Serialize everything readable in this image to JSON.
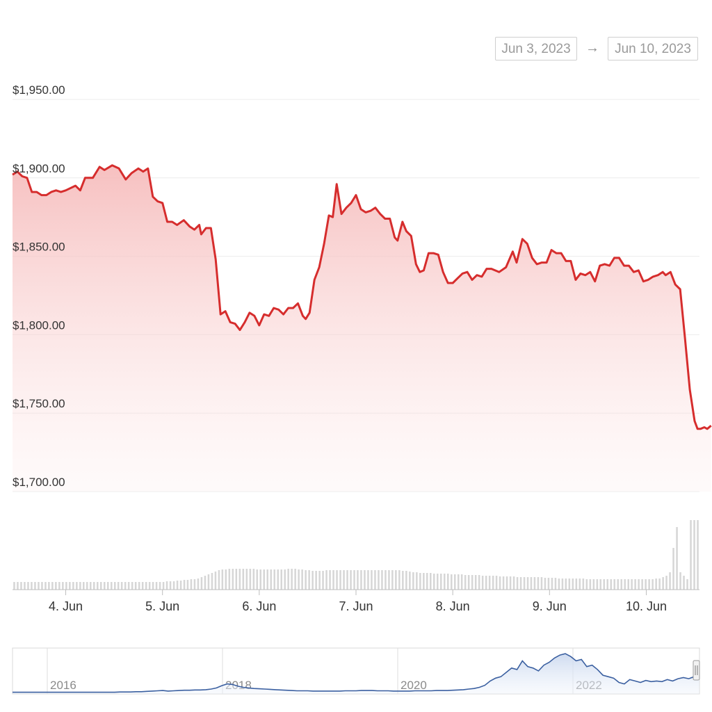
{
  "date_range": {
    "start": "Jun 3, 2023",
    "arrow": "→",
    "end": "Jun 10, 2023"
  },
  "colors": {
    "line": "#d62d2d",
    "area_top": "#f5b5b5",
    "volume": "#d6d6d6",
    "navigator": "#3a5fa0",
    "grid": "#ececec"
  },
  "chart_data": {
    "type": "line",
    "yticks": [
      "$1,950.00",
      "$1,900.00",
      "$1,850.00",
      "$1,800.00",
      "$1,750.00",
      "$1,700.00"
    ],
    "ylim": [
      1700,
      1950
    ],
    "xticks": [
      "4. Jun",
      "5. Jun",
      "6. Jun",
      "7. Jun",
      "8. Jun",
      "9. Jun",
      "10. Jun"
    ],
    "xlim": [
      3.45,
      10.55
    ],
    "grid": true,
    "series": [
      {
        "values_xy": [
          [
            3.45,
            1902
          ],
          [
            3.5,
            1904
          ],
          [
            3.55,
            1901
          ],
          [
            3.6,
            1900
          ],
          [
            3.65,
            1891
          ],
          [
            3.7,
            1891
          ],
          [
            3.75,
            1889
          ],
          [
            3.8,
            1889
          ],
          [
            3.85,
            1891
          ],
          [
            3.9,
            1892
          ],
          [
            3.95,
            1891
          ],
          [
            4.0,
            1892
          ],
          [
            4.1,
            1895
          ],
          [
            4.15,
            1892
          ],
          [
            4.2,
            1900
          ],
          [
            4.28,
            1900
          ],
          [
            4.35,
            1907
          ],
          [
            4.4,
            1905
          ],
          [
            4.48,
            1908
          ],
          [
            4.55,
            1906
          ],
          [
            4.62,
            1899
          ],
          [
            4.68,
            1903
          ],
          [
            4.75,
            1906
          ],
          [
            4.8,
            1904
          ],
          [
            4.85,
            1906
          ],
          [
            4.9,
            1888
          ],
          [
            4.95,
            1885
          ],
          [
            5.0,
            1884
          ],
          [
            5.05,
            1872
          ],
          [
            5.1,
            1872
          ],
          [
            5.15,
            1870
          ],
          [
            5.22,
            1873
          ],
          [
            5.28,
            1869
          ],
          [
            5.33,
            1867
          ],
          [
            5.38,
            1870
          ],
          [
            5.4,
            1864
          ],
          [
            5.45,
            1868
          ],
          [
            5.5,
            1868
          ],
          [
            5.55,
            1848
          ],
          [
            5.6,
            1813
          ],
          [
            5.65,
            1815
          ],
          [
            5.7,
            1808
          ],
          [
            5.75,
            1807
          ],
          [
            5.8,
            1803
          ],
          [
            5.85,
            1808
          ],
          [
            5.9,
            1814
          ],
          [
            5.95,
            1812
          ],
          [
            6.0,
            1806
          ],
          [
            6.05,
            1813
          ],
          [
            6.1,
            1812
          ],
          [
            6.15,
            1817
          ],
          [
            6.2,
            1816
          ],
          [
            6.25,
            1813
          ],
          [
            6.3,
            1817
          ],
          [
            6.35,
            1817
          ],
          [
            6.4,
            1820
          ],
          [
            6.45,
            1812
          ],
          [
            6.48,
            1810
          ],
          [
            6.52,
            1814
          ],
          [
            6.57,
            1835
          ],
          [
            6.62,
            1843
          ],
          [
            6.67,
            1858
          ],
          [
            6.72,
            1876
          ],
          [
            6.76,
            1875
          ],
          [
            6.8,
            1896
          ],
          [
            6.85,
            1877
          ],
          [
            6.9,
            1881
          ],
          [
            6.95,
            1884
          ],
          [
            7.0,
            1889
          ],
          [
            7.05,
            1880
          ],
          [
            7.1,
            1878
          ],
          [
            7.15,
            1879
          ],
          [
            7.2,
            1881
          ],
          [
            7.25,
            1877
          ],
          [
            7.3,
            1874
          ],
          [
            7.35,
            1874
          ],
          [
            7.4,
            1862
          ],
          [
            7.43,
            1860
          ],
          [
            7.48,
            1872
          ],
          [
            7.52,
            1866
          ],
          [
            7.57,
            1863
          ],
          [
            7.62,
            1845
          ],
          [
            7.66,
            1840
          ],
          [
            7.7,
            1841
          ],
          [
            7.75,
            1852
          ],
          [
            7.8,
            1852
          ],
          [
            7.85,
            1851
          ],
          [
            7.9,
            1840
          ],
          [
            7.95,
            1833
          ],
          [
            8.0,
            1833
          ],
          [
            8.05,
            1836
          ],
          [
            8.1,
            1839
          ],
          [
            8.15,
            1840
          ],
          [
            8.2,
            1835
          ],
          [
            8.25,
            1838
          ],
          [
            8.3,
            1837
          ],
          [
            8.35,
            1842
          ],
          [
            8.4,
            1842
          ],
          [
            8.48,
            1840
          ],
          [
            8.55,
            1843
          ],
          [
            8.62,
            1853
          ],
          [
            8.66,
            1846
          ],
          [
            8.72,
            1861
          ],
          [
            8.77,
            1858
          ],
          [
            8.82,
            1849
          ],
          [
            8.87,
            1845
          ],
          [
            8.92,
            1846
          ],
          [
            8.97,
            1846
          ],
          [
            9.02,
            1854
          ],
          [
            9.07,
            1852
          ],
          [
            9.12,
            1852
          ],
          [
            9.17,
            1847
          ],
          [
            9.22,
            1847
          ],
          [
            9.27,
            1835
          ],
          [
            9.32,
            1839
          ],
          [
            9.37,
            1838
          ],
          [
            9.42,
            1840
          ],
          [
            9.47,
            1834
          ],
          [
            9.52,
            1844
          ],
          [
            9.57,
            1845
          ],
          [
            9.62,
            1844
          ],
          [
            9.67,
            1849
          ],
          [
            9.72,
            1849
          ],
          [
            9.77,
            1844
          ],
          [
            9.82,
            1844
          ],
          [
            9.87,
            1840
          ],
          [
            9.92,
            1841
          ],
          [
            9.97,
            1834
          ],
          [
            10.02,
            1835
          ],
          [
            10.07,
            1837
          ],
          [
            10.12,
            1838
          ],
          [
            10.17,
            1840
          ],
          [
            10.2,
            1838
          ],
          [
            10.25,
            1840
          ],
          [
            10.3,
            1832
          ],
          [
            10.35,
            1829
          ],
          [
            10.4,
            1798
          ],
          [
            10.45,
            1765
          ],
          [
            10.5,
            1745
          ],
          [
            10.53,
            1740
          ],
          [
            10.56,
            1740
          ],
          [
            10.6,
            1741
          ],
          [
            10.63,
            1740
          ],
          [
            10.67,
            1742
          ]
        ]
      }
    ],
    "volume": {
      "values": [
        11,
        11,
        11,
        11,
        11,
        11,
        11,
        11,
        11,
        11,
        11,
        11,
        11,
        11,
        11,
        11,
        11,
        11,
        11,
        11,
        11,
        11,
        11,
        11,
        11,
        11,
        11,
        11,
        11,
        11,
        11,
        11,
        11,
        11,
        11,
        11,
        11,
        11,
        11,
        11,
        11,
        11,
        11,
        11,
        12,
        12,
        12,
        13,
        13,
        14,
        14,
        15,
        15,
        16,
        18,
        20,
        22,
        24,
        26,
        28,
        29,
        29,
        30,
        30,
        30,
        30,
        30,
        30,
        30,
        30,
        29,
        29,
        29,
        29,
        29,
        29,
        29,
        29,
        29,
        30,
        30,
        30,
        29,
        29,
        28,
        28,
        27,
        27,
        27,
        27,
        28,
        28,
        28,
        28,
        28,
        28,
        28,
        28,
        28,
        28,
        28,
        28,
        28,
        28,
        28,
        28,
        28,
        28,
        28,
        28,
        28,
        28,
        27,
        27,
        26,
        25,
        25,
        24,
        24,
        24,
        24,
        23,
        23,
        23,
        23,
        23,
        22,
        22,
        22,
        22,
        21,
        21,
        21,
        21,
        21,
        20,
        20,
        20,
        20,
        20,
        19,
        19,
        19,
        19,
        19,
        18,
        18,
        18,
        18,
        18,
        18,
        18,
        18,
        17,
        17,
        17,
        17,
        16,
        16,
        16,
        16,
        16,
        16,
        16,
        16,
        15,
        15,
        15,
        15,
        15,
        15,
        15,
        15,
        15,
        15,
        15,
        15,
        15,
        15,
        15,
        15,
        15,
        15,
        15,
        15,
        16,
        16,
        18,
        20,
        25,
        60,
        90,
        25,
        20,
        15,
        100,
        100,
        100
      ]
    }
  },
  "navigator": {
    "labels": [
      "2016",
      "2018",
      "2020",
      "2022"
    ],
    "values": [
      1,
      1,
      1,
      1,
      1,
      1,
      1,
      1,
      1,
      1,
      1,
      1,
      1,
      1,
      1,
      1,
      1,
      1,
      1,
      1,
      2,
      2,
      2,
      3,
      3,
      4,
      5,
      6,
      7,
      5,
      6,
      7,
      8,
      8,
      9,
      9,
      10,
      12,
      16,
      24,
      30,
      28,
      22,
      18,
      16,
      14,
      13,
      12,
      11,
      10,
      9,
      8,
      7,
      6,
      6,
      6,
      5,
      5,
      5,
      5,
      5,
      5,
      6,
      6,
      6,
      7,
      7,
      7,
      6,
      6,
      6,
      5,
      5,
      5,
      5,
      6,
      6,
      6,
      6,
      7,
      7,
      7,
      8,
      9,
      10,
      12,
      14,
      18,
      25,
      40,
      50,
      55,
      70,
      85,
      80,
      110,
      90,
      85,
      75,
      95,
      105,
      120,
      130,
      135,
      125,
      110,
      115,
      90,
      95,
      80,
      60,
      55,
      50,
      35,
      30,
      45,
      40,
      35,
      42,
      38,
      40,
      38,
      45,
      40,
      48,
      52,
      48,
      55,
      58
    ],
    "min": 0,
    "max": 140
  }
}
